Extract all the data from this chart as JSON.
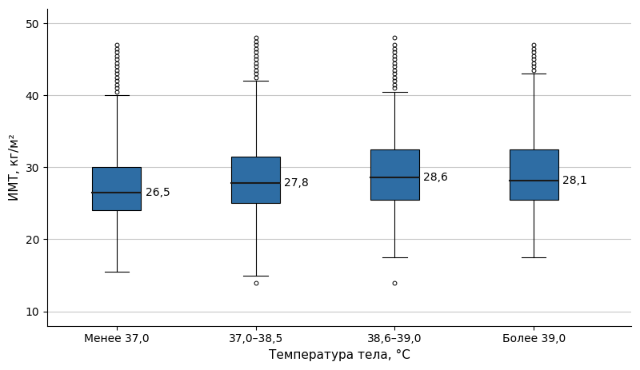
{
  "categories": [
    "Менее 37,0",
    "37,0–38,5",
    "38,6–39,0",
    "Более 39,0"
  ],
  "box_color": "#2E6DA4",
  "median_color": "#1a1a1a",
  "whisker_color": "#000000",
  "flier_color": "#000000",
  "ylabel": "ИМТ, кг/м²",
  "xlabel": "Температура тела, °С",
  "ylim": [
    8,
    52
  ],
  "yticks": [
    10,
    20,
    30,
    40,
    50
  ],
  "background_color": "#ffffff",
  "grid_color": "#c8c8c8",
  "medians": [
    26.5,
    27.8,
    28.6,
    28.1
  ],
  "q1": [
    24.0,
    25.0,
    25.5,
    25.5
  ],
  "q3": [
    30.0,
    31.5,
    32.5,
    32.5
  ],
  "whisker_low": [
    15.5,
    15.0,
    17.5,
    17.5
  ],
  "whisker_high": [
    40.0,
    42.0,
    40.5,
    43.0
  ],
  "outliers_low": [
    [],
    [
      14.0
    ],
    [
      14.0
    ],
    []
  ],
  "outliers_high": [
    [
      40.5,
      41.0,
      41.5,
      42.0,
      42.5,
      43.0,
      43.5,
      44.0,
      44.5,
      45.0,
      45.5,
      46.0,
      46.5,
      47.0
    ],
    [
      42.5,
      43.0,
      43.5,
      44.0,
      44.5,
      45.0,
      45.5,
      46.0,
      46.5,
      47.0,
      47.5,
      48.0
    ],
    [
      41.0,
      41.5,
      42.0,
      42.5,
      43.0,
      43.5,
      44.0,
      44.5,
      45.0,
      45.5,
      46.0,
      46.5,
      47.0,
      48.0
    ],
    [
      43.5,
      44.0,
      44.5,
      45.0,
      45.5,
      46.0,
      46.5,
      47.0
    ]
  ],
  "median_labels": [
    "26,5",
    "27,8",
    "28,6",
    "28,1"
  ],
  "label_fontsize": 10,
  "tick_fontsize": 10,
  "axis_label_fontsize": 11,
  "box_width": 0.35,
  "cap_ratio": 0.5,
  "flier_size": 3.5,
  "flier_linewidth": 0.7
}
